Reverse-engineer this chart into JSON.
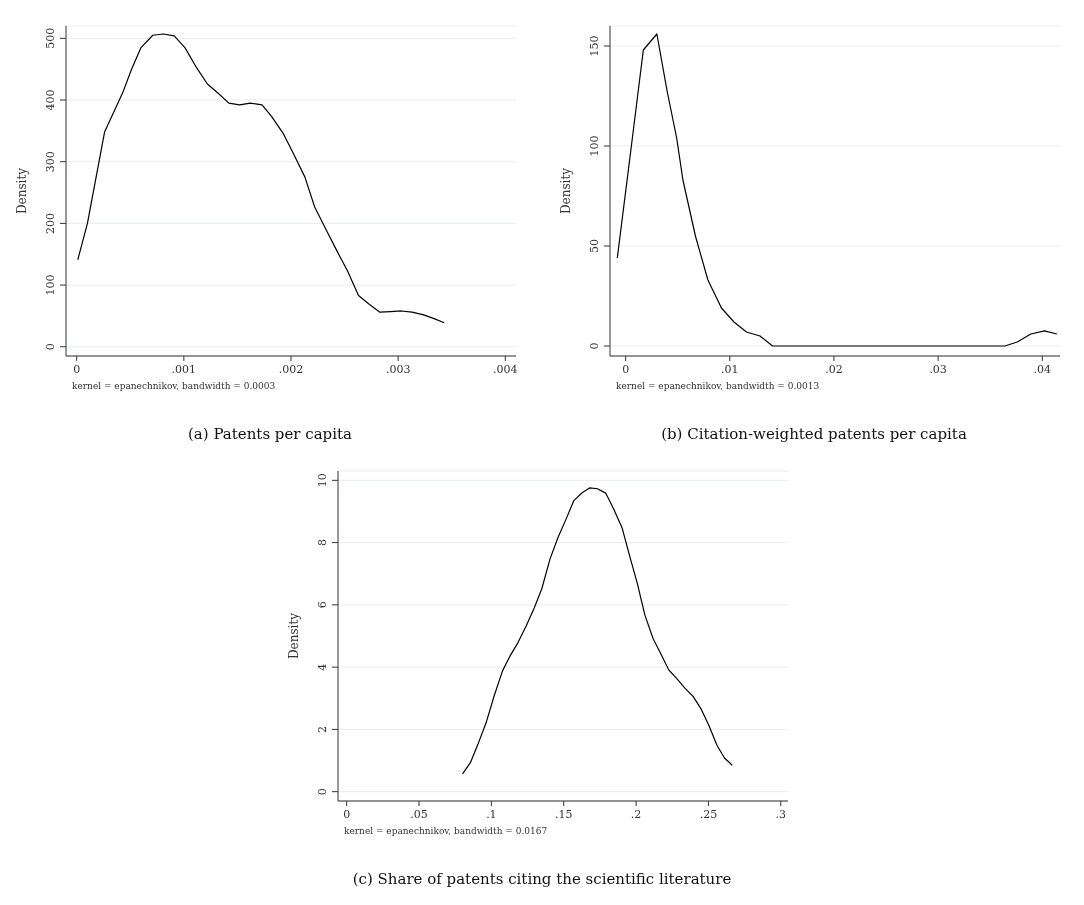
{
  "chart_data": [
    {
      "type": "line",
      "title": "(a) Patents per capita",
      "ylabel": "Density",
      "annotations": [
        "kernel = epanechnikov, bandwidth = 0.0003"
      ],
      "grid": "y",
      "xlim": [
        -0.0001,
        0.0041
      ],
      "ylim": [
        -15,
        520
      ],
      "xticks": [
        {
          "value": 0,
          "label": "0"
        },
        {
          "value": 0.001,
          "label": ".001"
        },
        {
          "value": 0.002,
          "label": ".002"
        },
        {
          "value": 0.003,
          "label": ".003"
        },
        {
          "value": 0.004,
          "label": ".004"
        }
      ],
      "yticks": [
        0,
        100,
        200,
        300,
        400,
        500
      ],
      "series": [
        {
          "color": "#000000",
          "x": [
            1e-05,
            0.0001,
            0.00026,
            0.00043,
            0.00051,
            0.0006,
            0.00071,
            0.00081,
            0.00091,
            0.00101,
            0.00112,
            0.00122,
            0.00132,
            0.00142,
            0.00152,
            0.00162,
            0.00173,
            0.00182,
            0.00193,
            0.00202,
            0.00213,
            0.00222,
            0.00233,
            0.00243,
            0.00253,
            0.00263,
            0.00273,
            0.00283,
            0.00293,
            0.00303,
            0.00313,
            0.00323,
            0.00333,
            0.00343
          ],
          "values": [
            141,
            200,
            348,
            412,
            449,
            485,
            505,
            507,
            504,
            485,
            452,
            426,
            411,
            395,
            392,
            395,
            392,
            373,
            345,
            314,
            275,
            227,
            189,
            155,
            122,
            83,
            69,
            56,
            57,
            58,
            56,
            52,
            46,
            39
          ]
        }
      ]
    },
    {
      "type": "line",
      "title": "(b) Citation-weighted patents per capita",
      "ylabel": "Density",
      "annotations": [
        "kernel = epanechnikov, bandwidth = 0.0013"
      ],
      "grid": "y",
      "xlim": [
        -0.0015,
        0.0417
      ],
      "ylim": [
        -5,
        160
      ],
      "xticks": [
        {
          "value": 0,
          "label": "0"
        },
        {
          "value": 0.01,
          "label": ".01"
        },
        {
          "value": 0.02,
          "label": ".02"
        },
        {
          "value": 0.03,
          "label": ".03"
        },
        {
          "value": 0.04,
          "label": ".04"
        }
      ],
      "yticks": [
        0,
        50,
        100,
        150
      ],
      "series": [
        {
          "color": "#000000",
          "x": [
            -0.0008,
            0.0006,
            0.0017,
            0.003,
            0.004,
            0.0049,
            0.0055,
            0.0067,
            0.0079,
            0.0092,
            0.0104,
            0.0116,
            0.0129,
            0.0141,
            0.0364,
            0.0376,
            0.0389,
            0.0402,
            0.0414
          ],
          "values": [
            44,
            102,
            148,
            156,
            127,
            104,
            83,
            55,
            33,
            19,
            12,
            7,
            5,
            0,
            0,
            2,
            6,
            7.6,
            6
          ]
        }
      ]
    },
    {
      "type": "line",
      "title": "(c) Share of patents citing the scientific literature",
      "ylabel": "Density",
      "annotations": [
        "kernel = epanechnikov, bandwidth = 0.0167"
      ],
      "grid": "y",
      "xlim": [
        -0.006,
        0.305
      ],
      "ylim": [
        -0.3,
        10.3
      ],
      "xticks": [
        {
          "value": 0,
          "label": "0"
        },
        {
          "value": 0.05,
          "label": ".05"
        },
        {
          "value": 0.1,
          "label": ".1"
        },
        {
          "value": 0.15,
          "label": ".15"
        },
        {
          "value": 0.2,
          "label": ".2"
        },
        {
          "value": 0.25,
          "label": ".25"
        },
        {
          "value": 0.3,
          "label": ".3"
        }
      ],
      "yticks": [
        0,
        2,
        4,
        6,
        8,
        10
      ],
      "series": [
        {
          "color": "#000000",
          "x": [
            0.0801,
            0.0855,
            0.0907,
            0.0964,
            0.102,
            0.1077,
            0.1129,
            0.1183,
            0.1242,
            0.1296,
            0.1348,
            0.1405,
            0.1461,
            0.1514,
            0.157,
            0.1627,
            0.1681,
            0.1733,
            0.179,
            0.1846,
            0.1903,
            0.1955,
            0.2009,
            0.2061,
            0.2118,
            0.217,
            0.2226,
            0.2283,
            0.2339,
            0.2394,
            0.245,
            0.2502,
            0.2559,
            0.2611,
            0.2665
          ],
          "values": [
            0.57,
            0.93,
            1.52,
            2.22,
            3.09,
            3.88,
            4.36,
            4.78,
            5.34,
            5.9,
            6.51,
            7.47,
            8.17,
            8.73,
            9.35,
            9.6,
            9.76,
            9.73,
            9.59,
            9.07,
            8.48,
            7.58,
            6.68,
            5.67,
            4.91,
            4.44,
            3.91,
            3.62,
            3.32,
            3.06,
            2.65,
            2.14,
            1.49,
            1.08,
            0.85
          ]
        }
      ]
    }
  ]
}
